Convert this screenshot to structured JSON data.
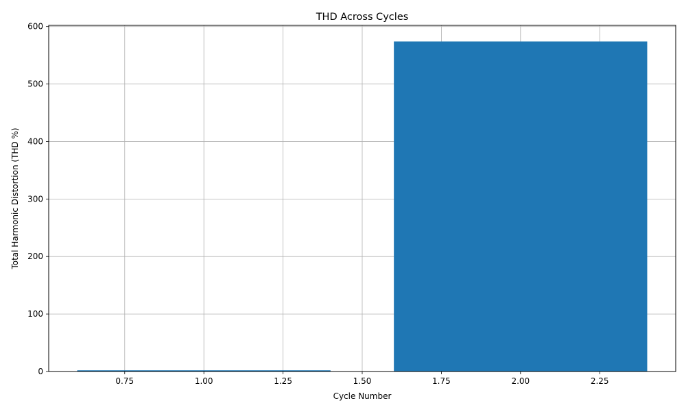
{
  "chart_data": {
    "type": "bar",
    "title": "THD Across Cycles",
    "xlabel": "Cycle Number",
    "ylabel": "Total Harmonic Distortion (THD %)",
    "x": [
      1,
      2
    ],
    "values": [
      2.1,
      574
    ],
    "bar_width": 0.8,
    "xlim": [
      0.51,
      2.49
    ],
    "ylim": [
      0,
      602
    ],
    "xticks": [
      0.75,
      1.0,
      1.25,
      1.5,
      1.75,
      2.0,
      2.25
    ],
    "xtick_labels": [
      "0.75",
      "1.00",
      "1.25",
      "1.50",
      "1.75",
      "2.00",
      "2.25"
    ],
    "yticks": [
      0,
      100,
      200,
      300,
      400,
      500,
      600
    ],
    "ytick_labels": [
      "0",
      "100",
      "200",
      "300",
      "400",
      "500",
      "600"
    ],
    "grid": true,
    "bar_color": "#1f77b4",
    "grid_color": "#b0b0b0"
  }
}
